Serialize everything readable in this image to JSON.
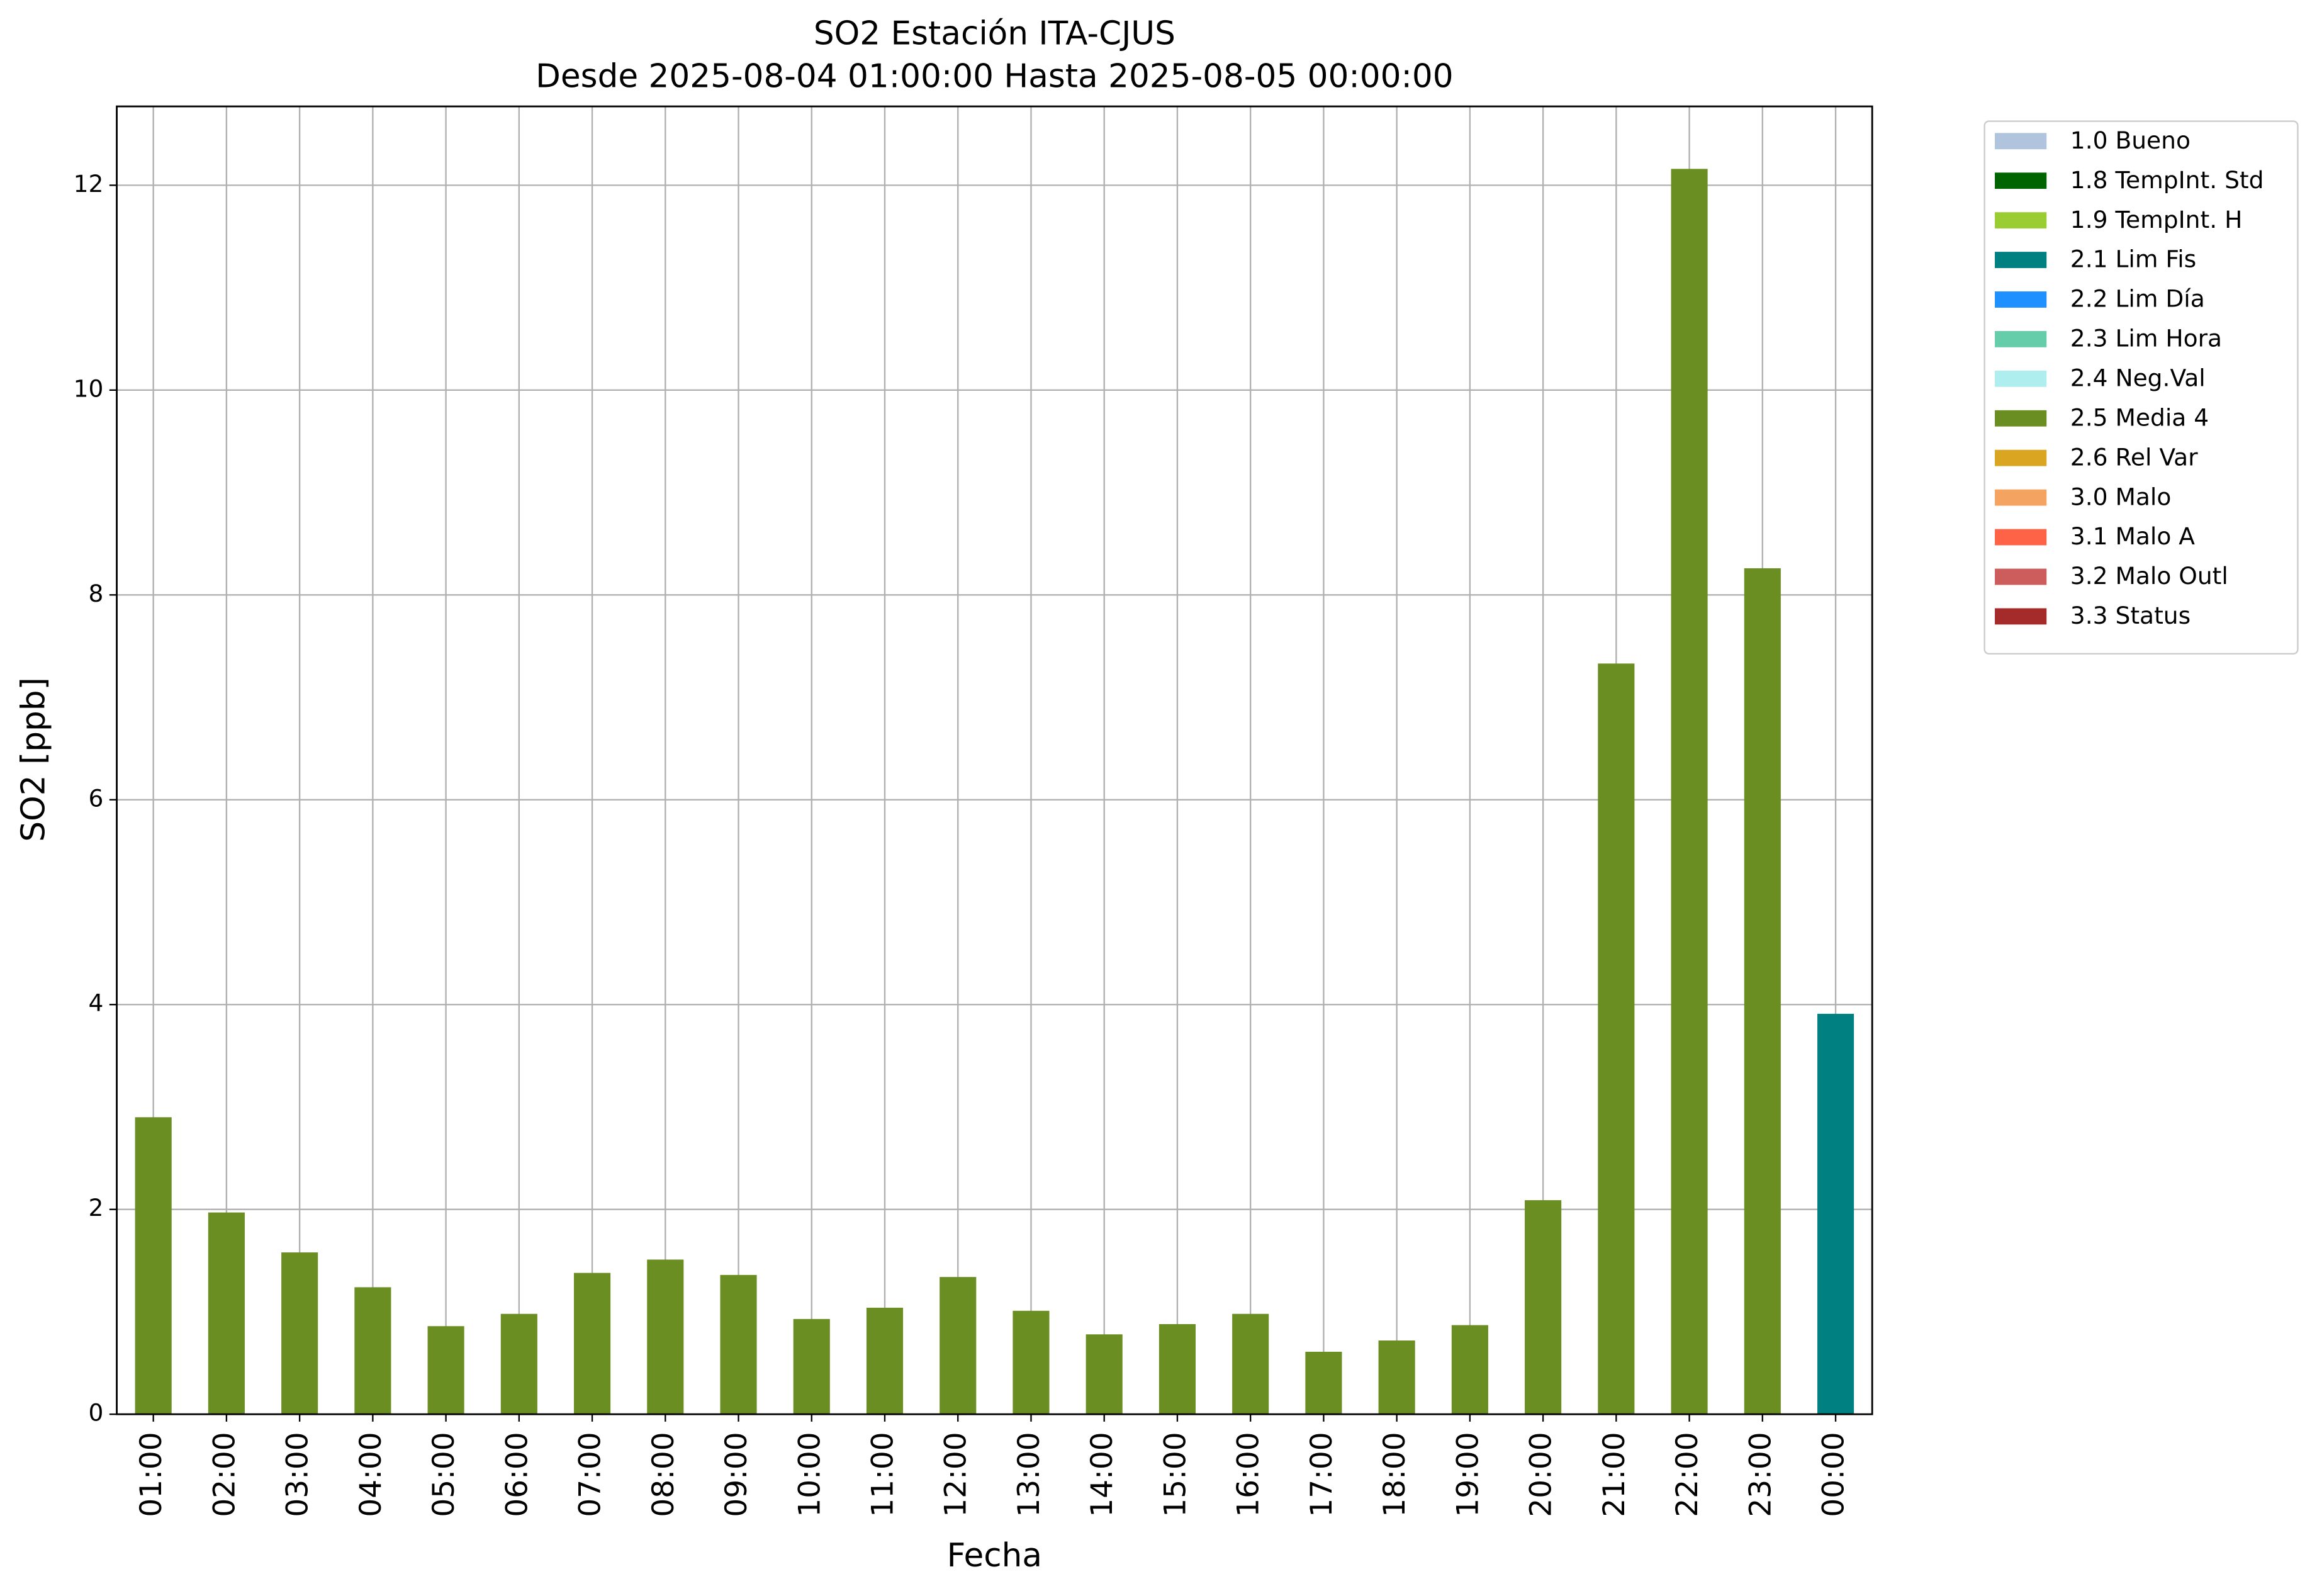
{
  "chart_data": {
    "type": "bar",
    "stacked": true,
    "title": "SO2 Estación ITA-CJUS",
    "subtitle": "Desde 2025-08-04 01:00:00 Hasta 2025-08-05 00:00:00",
    "xlabel": "Fecha",
    "ylabel": "SO2 [ppb]",
    "categories": [
      "01:00",
      "02:00",
      "03:00",
      "04:00",
      "05:00",
      "06:00",
      "07:00",
      "08:00",
      "09:00",
      "10:00",
      "11:00",
      "12:00",
      "13:00",
      "14:00",
      "15:00",
      "16:00",
      "17:00",
      "18:00",
      "19:00",
      "20:00",
      "21:00",
      "22:00",
      "23:00",
      "00:00"
    ],
    "series": [
      {
        "name": "1.0 Bueno",
        "color": "#b0c4de",
        "values": [
          null,
          null,
          null,
          null,
          null,
          null,
          null,
          null,
          null,
          null,
          null,
          null,
          null,
          null,
          null,
          null,
          null,
          null,
          null,
          null,
          null,
          null,
          null,
          null
        ]
      },
      {
        "name": "1.8 TempInt. Std",
        "color": "#006400",
        "values": [
          null,
          null,
          null,
          null,
          null,
          null,
          null,
          null,
          null,
          null,
          null,
          null,
          null,
          null,
          null,
          null,
          null,
          null,
          null,
          null,
          null,
          null,
          null,
          null
        ]
      },
      {
        "name": "1.9 TempInt. H",
        "color": "#9acd32",
        "values": [
          null,
          null,
          null,
          null,
          null,
          null,
          null,
          null,
          null,
          null,
          null,
          null,
          null,
          null,
          null,
          null,
          null,
          null,
          null,
          null,
          null,
          null,
          null,
          null
        ]
      },
      {
        "name": "2.1 Lim Fis",
        "color": "#008080",
        "values": [
          null,
          null,
          null,
          null,
          null,
          null,
          null,
          null,
          null,
          null,
          null,
          null,
          null,
          null,
          null,
          null,
          null,
          null,
          null,
          null,
          null,
          null,
          null,
          3.91
        ]
      },
      {
        "name": "2.2 Lim Día",
        "color": "#1e90ff",
        "values": [
          null,
          null,
          null,
          null,
          null,
          null,
          null,
          null,
          null,
          null,
          null,
          null,
          null,
          null,
          null,
          null,
          null,
          null,
          null,
          null,
          null,
          null,
          null,
          null
        ]
      },
      {
        "name": "2.3 Lim Hora",
        "color": "#66cdaa",
        "values": [
          null,
          null,
          null,
          null,
          null,
          null,
          null,
          null,
          null,
          null,
          null,
          null,
          null,
          null,
          null,
          null,
          null,
          null,
          null,
          null,
          null,
          null,
          null,
          null
        ]
      },
      {
        "name": "2.4 Neg.Val",
        "color": "#afeeee",
        "values": [
          null,
          null,
          null,
          null,
          null,
          null,
          null,
          null,
          null,
          null,
          null,
          null,
          null,
          null,
          null,
          null,
          null,
          null,
          null,
          null,
          null,
          null,
          null,
          null
        ]
      },
      {
        "name": "2.5 Media 4",
        "color": "#6b8e23",
        "values": [
          2.9,
          1.97,
          1.58,
          1.24,
          0.86,
          0.98,
          1.38,
          1.51,
          1.36,
          0.93,
          1.04,
          1.34,
          1.01,
          0.78,
          0.88,
          0.98,
          0.61,
          0.72,
          0.87,
          2.09,
          7.33,
          12.16,
          8.26,
          null
        ]
      },
      {
        "name": "2.6 Rel Var",
        "color": "#daa520",
        "values": [
          null,
          null,
          null,
          null,
          null,
          null,
          null,
          null,
          null,
          null,
          null,
          null,
          null,
          null,
          null,
          null,
          null,
          null,
          null,
          null,
          null,
          null,
          null,
          null
        ]
      },
      {
        "name": "3.0 Malo",
        "color": "#f4a460",
        "values": [
          null,
          null,
          null,
          null,
          null,
          null,
          null,
          null,
          null,
          null,
          null,
          null,
          null,
          null,
          null,
          null,
          null,
          null,
          null,
          null,
          null,
          null,
          null,
          null
        ]
      },
      {
        "name": "3.1 Malo A",
        "color": "#ff6347",
        "values": [
          null,
          null,
          null,
          null,
          null,
          null,
          null,
          null,
          null,
          null,
          null,
          null,
          null,
          null,
          null,
          null,
          null,
          null,
          null,
          null,
          null,
          null,
          null,
          null
        ]
      },
      {
        "name": "3.2 Malo Outl",
        "color": "#cd5c5c",
        "values": [
          null,
          null,
          null,
          null,
          null,
          null,
          null,
          null,
          null,
          null,
          null,
          null,
          null,
          null,
          null,
          null,
          null,
          null,
          null,
          null,
          null,
          null,
          null,
          null
        ]
      },
      {
        "name": "3.3 Status",
        "color": "#a52a2a",
        "values": [
          null,
          null,
          null,
          null,
          null,
          null,
          null,
          null,
          null,
          null,
          null,
          null,
          null,
          null,
          null,
          null,
          null,
          null,
          null,
          null,
          null,
          null,
          null,
          null
        ]
      }
    ],
    "ylim": [
      0,
      12.77
    ],
    "yticks": [
      0,
      2,
      4,
      6,
      8,
      10,
      12
    ],
    "grid": true,
    "legend": "outside right"
  }
}
